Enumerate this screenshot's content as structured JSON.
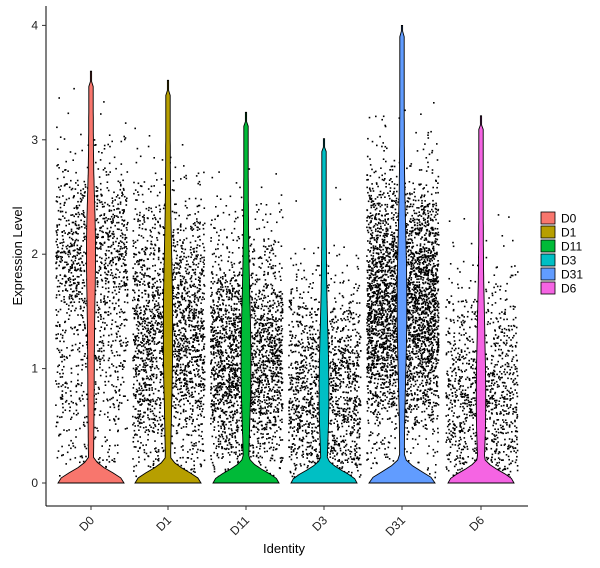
{
  "chart_data": {
    "type": "violin",
    "title": "",
    "xlabel": "Identity",
    "ylabel": "Expression Level",
    "categories": [
      "D0",
      "D1",
      "D11",
      "D3",
      "D31",
      "D6"
    ],
    "ylim": [
      -0.2,
      4.2
    ],
    "yticks": [
      0,
      1,
      2,
      3,
      4
    ],
    "max_values": [
      3.6,
      3.52,
      3.24,
      3.01,
      4.0,
      3.21
    ],
    "grid": false,
    "legend": {
      "position": "right",
      "entries": [
        "D0",
        "D1",
        "D11",
        "D3",
        "D31",
        "D6"
      ]
    },
    "colors": {
      "D0": "#F8766D",
      "D1": "#B79F00",
      "D11": "#00BA38",
      "D3": "#00BFC4",
      "D31": "#619CFF",
      "D6": "#F564E3"
    },
    "point_color": "#000000"
  }
}
